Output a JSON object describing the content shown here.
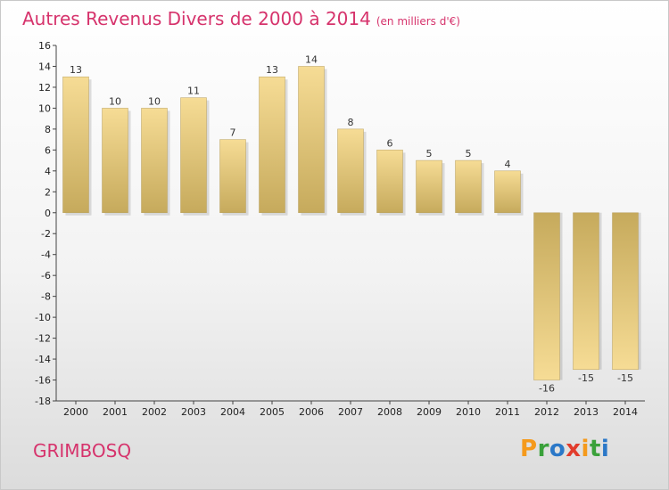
{
  "title": "Autres Revenus Divers de 2000 à 2014",
  "subtitle": "(en milliers d'€)",
  "location": "GRIMBOSQ",
  "logo": {
    "letters": [
      "P",
      "r",
      "o",
      "x",
      "i",
      "t",
      "i"
    ],
    "colors": [
      "#f59a1b",
      "#3aa13a",
      "#2b78c8",
      "#e23c2c",
      "#f59a1b",
      "#3aa13a",
      "#2b78c8"
    ]
  },
  "colors": {
    "title": "#d6336c",
    "bar_light": "#f6dc95",
    "bar_dark": "#c6aa5c"
  },
  "chart_data": {
    "type": "bar",
    "categories": [
      "2000",
      "2001",
      "2002",
      "2003",
      "2004",
      "2005",
      "2006",
      "2007",
      "2008",
      "2009",
      "2010",
      "2011",
      "2012",
      "2013",
      "2014"
    ],
    "values": [
      13,
      10,
      10,
      11,
      7,
      13,
      14,
      8,
      6,
      5,
      5,
      4,
      -16,
      -15,
      -15
    ],
    "value_labels": [
      "13",
      "10",
      "10",
      "11",
      "7",
      "13",
      "14",
      "8",
      "6",
      "5",
      "5",
      "4",
      "-16",
      "-15",
      "-15"
    ],
    "ylim": [
      -18,
      16
    ],
    "yticks": [
      16,
      14,
      12,
      10,
      8,
      6,
      4,
      2,
      0,
      -2,
      -4,
      -6,
      -8,
      -10,
      -12,
      -14,
      -16,
      -18
    ],
    "grid": false,
    "legend": "none"
  }
}
